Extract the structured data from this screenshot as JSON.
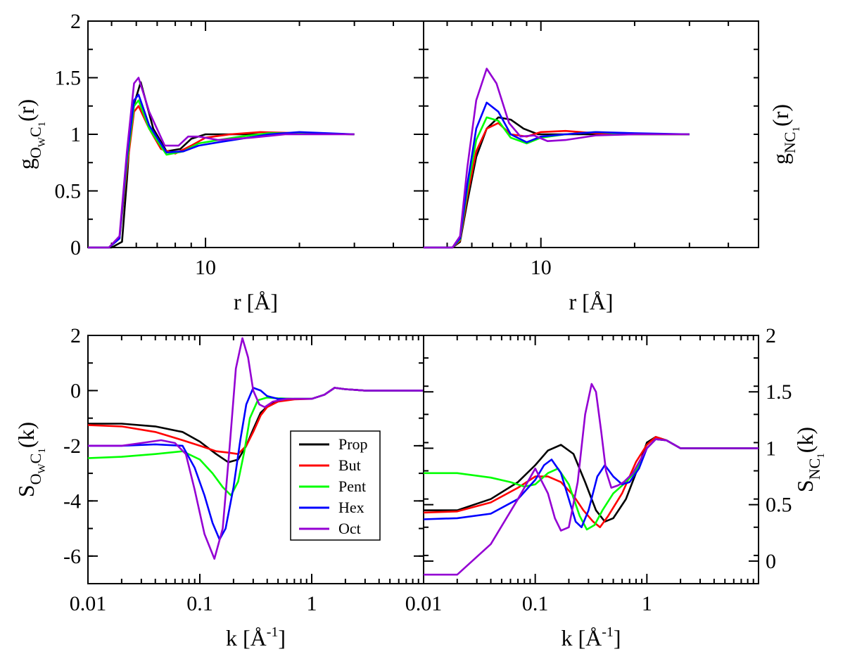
{
  "chart_data": [
    {
      "id": "gOC",
      "type": "line",
      "xscale": "log",
      "xlim": [
        4.2,
        50
      ],
      "ylim": [
        0,
        2
      ],
      "xticks": [
        10
      ],
      "xtick_labels": [
        "10"
      ],
      "yticks": [
        0,
        0.5,
        1,
        1.5,
        2
      ],
      "ytick_labels": [
        "0",
        "0.5",
        "1",
        "1.5",
        "2"
      ],
      "ylabel_side": "left",
      "xlabel": "r [Å]",
      "ylabel": {
        "base": "g",
        "sub1": "O",
        "subsub1": "W",
        "sub2": "C",
        "subsub2": "1",
        "suffix": "(r)"
      },
      "series": [
        {
          "name": "Prop",
          "color": "#000000",
          "x": [
            4.2,
            5.0,
            5.4,
            5.6,
            5.8,
            6.2,
            6.8,
            7.5,
            8.3,
            9.0,
            10,
            12,
            15,
            20,
            30
          ],
          "y": [
            0,
            0,
            0.05,
            0.6,
            1.2,
            1.46,
            1.05,
            0.85,
            0.87,
            0.96,
            1.0,
            1.0,
            1.0,
            1.01,
            1.0
          ]
        },
        {
          "name": "But",
          "color": "#ff0000",
          "x": [
            4.2,
            4.9,
            5.3,
            5.6,
            5.9,
            6.1,
            6.6,
            7.2,
            8.0,
            9.0,
            10,
            12,
            15,
            20,
            30
          ],
          "y": [
            0,
            0,
            0.08,
            0.7,
            1.2,
            1.25,
            1.05,
            0.87,
            0.83,
            0.9,
            0.97,
            1.0,
            1.02,
            1.01,
            1.0
          ]
        },
        {
          "name": "Pent",
          "color": "#00ff00",
          "x": [
            4.2,
            4.9,
            5.3,
            5.6,
            5.9,
            6.1,
            6.6,
            7.5,
            8.5,
            9.5,
            11,
            13,
            16,
            20,
            30
          ],
          "y": [
            0,
            0,
            0.08,
            0.75,
            1.25,
            1.3,
            1.05,
            0.82,
            0.85,
            0.92,
            0.95,
            0.98,
            1.01,
            1.01,
            1.0
          ]
        },
        {
          "name": "Hex",
          "color": "#0000ff",
          "x": [
            4.2,
            4.9,
            5.3,
            5.6,
            5.9,
            6.1,
            6.6,
            7.5,
            8.5,
            9.5,
            11,
            13,
            16,
            20,
            30
          ],
          "y": [
            0,
            0,
            0.08,
            0.8,
            1.3,
            1.35,
            1.08,
            0.84,
            0.85,
            0.9,
            0.93,
            0.96,
            1.0,
            1.02,
            1.0
          ]
        },
        {
          "name": "Oct",
          "color": "#9400d3",
          "x": [
            4.2,
            4.9,
            5.3,
            5.6,
            5.9,
            6.1,
            6.6,
            7.4,
            8.2,
            8.8,
            9.5,
            11,
            14,
            18,
            30
          ],
          "y": [
            0,
            0,
            0.1,
            0.85,
            1.45,
            1.5,
            1.2,
            0.9,
            0.9,
            0.98,
            0.98,
            0.95,
            0.97,
            1.0,
            1.0
          ]
        }
      ]
    },
    {
      "id": "gNC",
      "type": "line",
      "xscale": "log",
      "xlim": [
        4.2,
        50
      ],
      "ylim": [
        0,
        2
      ],
      "xticks": [
        10
      ],
      "xtick_labels": [
        "10"
      ],
      "yticks": [],
      "ytick_labels": [],
      "ylabel_side": "right",
      "xlabel": "r [Å]",
      "ylabel": {
        "base": "g",
        "sub1": "NC",
        "subsub1": "",
        "sub2": "",
        "subsub2": "1",
        "suffix": "(r)"
      },
      "series": [
        {
          "name": "Prop",
          "color": "#000000",
          "x": [
            4.2,
            5.2,
            5.5,
            5.8,
            6.2,
            6.7,
            7.3,
            8.0,
            8.8,
            9.8,
            11,
            14,
            20,
            30
          ],
          "y": [
            0,
            0,
            0.05,
            0.4,
            0.8,
            1.05,
            1.15,
            1.13,
            1.05,
            1.0,
            1.0,
            1.0,
            1.0,
            1.0
          ]
        },
        {
          "name": "But",
          "color": "#ff0000",
          "x": [
            4.2,
            5.2,
            5.5,
            5.8,
            6.2,
            6.7,
            7.3,
            8.0,
            9.0,
            10,
            12,
            15,
            20,
            30
          ],
          "y": [
            0,
            0,
            0.06,
            0.45,
            0.85,
            1.05,
            1.1,
            1.0,
            0.98,
            1.02,
            1.03,
            1.01,
            1.0,
            1.0
          ]
        },
        {
          "name": "Pent",
          "color": "#00ff00",
          "x": [
            4.2,
            5.2,
            5.5,
            5.8,
            6.2,
            6.7,
            7.3,
            8.0,
            9.0,
            10,
            12,
            15,
            20,
            30
          ],
          "y": [
            0,
            0,
            0.07,
            0.5,
            0.95,
            1.15,
            1.12,
            0.97,
            0.92,
            0.97,
            1.0,
            1.02,
            1.0,
            1.0
          ]
        },
        {
          "name": "Hex",
          "color": "#0000ff",
          "x": [
            4.2,
            5.2,
            5.5,
            5.8,
            6.2,
            6.7,
            7.3,
            8.0,
            9.0,
            10,
            12,
            15,
            20,
            30
          ],
          "y": [
            0,
            0,
            0.08,
            0.55,
            1.05,
            1.28,
            1.2,
            1.0,
            0.93,
            0.98,
            1.0,
            1.02,
            1.01,
            1.0
          ]
        },
        {
          "name": "Oct",
          "color": "#9400d3",
          "x": [
            4.2,
            5.2,
            5.5,
            5.8,
            6.2,
            6.7,
            7.2,
            7.9,
            8.6,
            9.5,
            10.5,
            12,
            15,
            20,
            30
          ],
          "y": [
            0,
            0,
            0.1,
            0.7,
            1.3,
            1.58,
            1.45,
            1.1,
            0.98,
            0.99,
            0.94,
            0.95,
            0.99,
            1.0,
            1.0
          ]
        }
      ]
    },
    {
      "id": "SOC",
      "type": "line",
      "xscale": "log",
      "xlim": [
        0.01,
        10
      ],
      "ylim": [
        -7,
        2
      ],
      "xticks": [
        0.01,
        0.1,
        1
      ],
      "xtick_labels": [
        "0.01",
        "0.1",
        "1"
      ],
      "yticks": [
        -6,
        -4,
        -2,
        0,
        2
      ],
      "ytick_labels": [
        "-6",
        "-4",
        "-2",
        "0",
        "2"
      ],
      "ylabel_side": "left",
      "xlabel": "k [Å",
      "xlabel_sup": "-1",
      "xlabel_end": "]",
      "ylabel": {
        "base": "S",
        "sub1": "O",
        "subsub1": "W",
        "sub2": "C",
        "subsub2": "1",
        "suffix": "(k)"
      },
      "series": [
        {
          "name": "Prop",
          "color": "#000000",
          "x": [
            0.01,
            0.02,
            0.04,
            0.07,
            0.1,
            0.14,
            0.18,
            0.22,
            0.26,
            0.3,
            0.35,
            0.42,
            0.5,
            0.7,
            1.0,
            1.3,
            1.6,
            2.0,
            3.0,
            5.0,
            10
          ],
          "y": [
            -1.2,
            -1.2,
            -1.3,
            -1.5,
            -1.85,
            -2.3,
            -2.6,
            -2.5,
            -2.0,
            -1.4,
            -0.8,
            -0.5,
            -0.35,
            -0.3,
            -0.3,
            -0.15,
            0.1,
            0.05,
            0.0,
            0.0,
            0.0
          ]
        },
        {
          "name": "But",
          "color": "#ff0000",
          "x": [
            0.01,
            0.02,
            0.04,
            0.07,
            0.1,
            0.14,
            0.18,
            0.22,
            0.26,
            0.3,
            0.35,
            0.4,
            0.5,
            0.7,
            1.0,
            1.3,
            1.6,
            2.0,
            3.0,
            5.0,
            10
          ],
          "y": [
            -1.25,
            -1.3,
            -1.5,
            -1.8,
            -2.0,
            -2.2,
            -2.25,
            -2.3,
            -2.0,
            -1.5,
            -0.9,
            -0.6,
            -0.4,
            -0.32,
            -0.3,
            -0.15,
            0.1,
            0.05,
            0.0,
            0.0,
            0.0
          ]
        },
        {
          "name": "Pent",
          "color": "#00ff00",
          "x": [
            0.01,
            0.02,
            0.04,
            0.07,
            0.1,
            0.13,
            0.16,
            0.19,
            0.22,
            0.25,
            0.28,
            0.33,
            0.4,
            0.5,
            0.7,
            1.0,
            1.3,
            1.6,
            2.0,
            3.0,
            5.0,
            10
          ],
          "y": [
            -2.45,
            -2.4,
            -2.3,
            -2.2,
            -2.5,
            -3.0,
            -3.5,
            -3.8,
            -3.3,
            -2.2,
            -1.0,
            -0.35,
            -0.25,
            -0.28,
            -0.3,
            -0.3,
            -0.15,
            0.1,
            0.05,
            0.0,
            0.0,
            0.0
          ]
        },
        {
          "name": "Hex",
          "color": "#0000ff",
          "x": [
            0.01,
            0.02,
            0.04,
            0.07,
            0.09,
            0.11,
            0.13,
            0.15,
            0.17,
            0.2,
            0.23,
            0.26,
            0.3,
            0.35,
            0.4,
            0.5,
            0.7,
            1.0,
            1.3,
            1.6,
            2.0,
            3.0,
            5.0,
            10
          ],
          "y": [
            -2.0,
            -2.0,
            -1.95,
            -2.0,
            -2.8,
            -3.8,
            -4.8,
            -5.4,
            -5.0,
            -3.5,
            -1.8,
            -0.5,
            0.1,
            0.0,
            -0.2,
            -0.3,
            -0.3,
            -0.3,
            -0.15,
            0.1,
            0.05,
            0.0,
            0.0,
            0.0
          ]
        },
        {
          "name": "Oct",
          "color": "#9400d3",
          "x": [
            0.01,
            0.02,
            0.03,
            0.045,
            0.06,
            0.075,
            0.09,
            0.11,
            0.135,
            0.16,
            0.185,
            0.21,
            0.24,
            0.27,
            0.3,
            0.34,
            0.38,
            0.45,
            0.6,
            0.8,
            1.0,
            1.3,
            1.6,
            2.0,
            3.0,
            5.0,
            10
          ],
          "y": [
            -2.0,
            -2.0,
            -1.9,
            -1.8,
            -1.9,
            -2.3,
            -3.6,
            -5.2,
            -6.1,
            -5.0,
            -2.0,
            0.8,
            1.9,
            1.2,
            0.0,
            -0.5,
            -0.6,
            -0.4,
            -0.3,
            -0.3,
            -0.3,
            -0.15,
            0.1,
            0.05,
            0.0,
            0.0,
            0.0
          ]
        }
      ]
    },
    {
      "id": "SNC",
      "type": "line",
      "xscale": "log",
      "xlim": [
        0.01,
        10
      ],
      "ylim": [
        -0.2,
        2
      ],
      "xticks": [
        0.1,
        1
      ],
      "xtick_labels": [
        "0.1",
        "1"
      ],
      "yticks": [
        0,
        0.5,
        1,
        1.5,
        2
      ],
      "ytick_labels": [
        "0",
        "0.5",
        "1",
        "1.5",
        "2"
      ],
      "ylabel_side": "right",
      "xlabel": "k [Å",
      "xlabel_sup": "-1",
      "xlabel_end": "]",
      "extra_tick_label": "0.01",
      "ylabel": {
        "base": "S",
        "sub1": "NC",
        "subsub1": "",
        "sub2": "",
        "subsub2": "1",
        "suffix": "(k)"
      },
      "series": [
        {
          "name": "Prop",
          "color": "#000000",
          "x": [
            0.01,
            0.02,
            0.04,
            0.07,
            0.1,
            0.13,
            0.17,
            0.22,
            0.28,
            0.35,
            0.42,
            0.5,
            0.65,
            0.85,
            1.0,
            1.2,
            1.5,
            2.0,
            3.0,
            5.0,
            10
          ],
          "y": [
            0.45,
            0.45,
            0.55,
            0.7,
            0.85,
            0.98,
            1.03,
            0.95,
            0.7,
            0.45,
            0.35,
            0.38,
            0.55,
            0.85,
            1.05,
            1.1,
            1.07,
            1.0,
            1.0,
            1.0,
            1.0
          ]
        },
        {
          "name": "But",
          "color": "#ff0000",
          "x": [
            0.01,
            0.02,
            0.04,
            0.07,
            0.1,
            0.13,
            0.17,
            0.22,
            0.27,
            0.33,
            0.38,
            0.45,
            0.6,
            0.8,
            1.0,
            1.2,
            1.5,
            2.0,
            3.0,
            5.0,
            10
          ],
          "y": [
            0.43,
            0.44,
            0.52,
            0.65,
            0.75,
            0.75,
            0.7,
            0.58,
            0.45,
            0.35,
            0.3,
            0.4,
            0.6,
            0.88,
            1.03,
            1.1,
            1.07,
            1.0,
            1.0,
            1.0,
            1.0
          ]
        },
        {
          "name": "Pent",
          "color": "#00ff00",
          "x": [
            0.01,
            0.02,
            0.04,
            0.06,
            0.08,
            0.1,
            0.13,
            0.16,
            0.2,
            0.25,
            0.29,
            0.34,
            0.4,
            0.5,
            0.65,
            0.8,
            1.0,
            1.2,
            1.5,
            2.0,
            3.0,
            5.0,
            10
          ],
          "y": [
            0.78,
            0.78,
            0.74,
            0.7,
            0.66,
            0.68,
            0.78,
            0.82,
            0.68,
            0.4,
            0.28,
            0.32,
            0.45,
            0.6,
            0.7,
            0.8,
            1.0,
            1.08,
            1.07,
            1.0,
            1.0,
            1.0,
            1.0
          ]
        },
        {
          "name": "Hex",
          "color": "#0000ff",
          "x": [
            0.01,
            0.02,
            0.04,
            0.07,
            0.1,
            0.12,
            0.14,
            0.17,
            0.2,
            0.23,
            0.26,
            0.3,
            0.36,
            0.42,
            0.5,
            0.6,
            0.7,
            0.85,
            1.0,
            1.2,
            1.5,
            2.0,
            3.0,
            5.0,
            10
          ],
          "y": [
            0.37,
            0.38,
            0.42,
            0.55,
            0.72,
            0.85,
            0.9,
            0.78,
            0.55,
            0.35,
            0.3,
            0.45,
            0.75,
            0.85,
            0.75,
            0.68,
            0.7,
            0.82,
            1.0,
            1.08,
            1.07,
            1.0,
            1.0,
            1.0,
            1.0
          ]
        },
        {
          "name": "Oct",
          "color": "#9400d3",
          "x": [
            0.01,
            0.02,
            0.04,
            0.07,
            0.1,
            0.13,
            0.15,
            0.17,
            0.2,
            0.24,
            0.28,
            0.32,
            0.35,
            0.39,
            0.43,
            0.48,
            0.55,
            0.62,
            0.75,
            0.9,
            1.0,
            1.2,
            1.5,
            2.0,
            3.0,
            5.0,
            10
          ],
          "y": [
            -0.12,
            -0.12,
            0.15,
            0.55,
            0.82,
            0.6,
            0.38,
            0.27,
            0.3,
            0.7,
            1.3,
            1.57,
            1.5,
            1.15,
            0.8,
            0.65,
            0.67,
            0.7,
            0.78,
            0.92,
            1.0,
            1.08,
            1.07,
            1.0,
            1.0,
            1.0,
            1.0
          ]
        }
      ]
    }
  ],
  "legend": {
    "placement": "inside bottom-left panel",
    "entries": [
      {
        "label": "Prop",
        "color": "#000000"
      },
      {
        "label": "But",
        "color": "#ff0000"
      },
      {
        "label": "Pent",
        "color": "#00ff00"
      },
      {
        "label": "Hex",
        "color": "#0000ff"
      },
      {
        "label": "Oct",
        "color": "#9400d3"
      }
    ]
  }
}
